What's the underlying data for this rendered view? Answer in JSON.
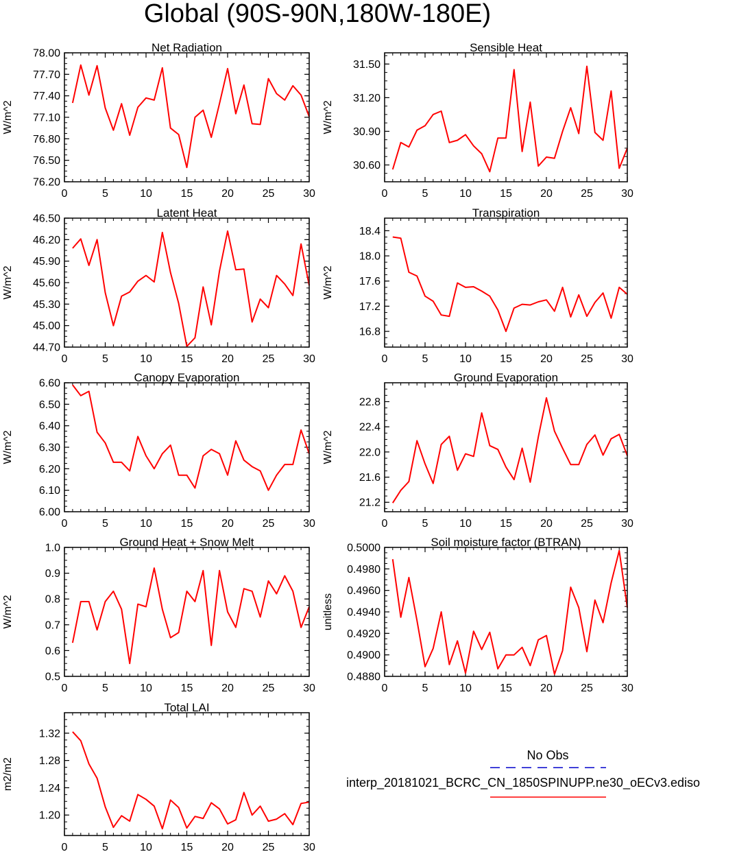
{
  "title": "Global (90S-90N,180W-180E)",
  "series_color": "#ff0000",
  "obs_color": "#0000cc",
  "legend": {
    "obs_label": "No Obs",
    "model_label": "interp_20181021_BCRC_CN_1850SPINUPP.ne30_oECv3.ediso"
  },
  "chart_data": [
    {
      "type": "line",
      "title": "Net Radiation",
      "ylabel": "W/m^2",
      "xlim": [
        0,
        30
      ],
      "xticks": [
        0,
        5,
        10,
        15,
        20,
        25,
        30
      ],
      "ylim": [
        76.2,
        78.0
      ],
      "yticks": [
        "76.20",
        "76.50",
        "76.80",
        "77.10",
        "77.40",
        "77.70",
        "78.00"
      ],
      "x": [
        1,
        2,
        3,
        4,
        5,
        6,
        7,
        8,
        9,
        10,
        11,
        12,
        13,
        14,
        15,
        16,
        17,
        18,
        19,
        20,
        21,
        22,
        23,
        24,
        25,
        26,
        27,
        28,
        29,
        30
      ],
      "values": [
        77.3,
        77.83,
        77.41,
        77.82,
        77.23,
        76.92,
        77.29,
        76.85,
        77.24,
        77.37,
        77.34,
        77.79,
        76.95,
        76.86,
        76.4,
        77.1,
        77.2,
        76.82,
        77.29,
        77.78,
        77.15,
        77.55,
        77.01,
        77.0,
        77.64,
        77.43,
        77.34,
        77.54,
        77.41,
        77.11
      ]
    },
    {
      "type": "line",
      "title": "Sensible Heat",
      "ylabel": "W/m^2",
      "xlim": [
        0,
        30
      ],
      "xticks": [
        0,
        5,
        10,
        15,
        20,
        25,
        30
      ],
      "ylim": [
        30.45,
        31.6
      ],
      "yticks": [
        "30.60",
        "30.90",
        "31.20",
        "31.50"
      ],
      "x": [
        1,
        2,
        3,
        4,
        5,
        6,
        7,
        8,
        9,
        10,
        11,
        12,
        13,
        14,
        15,
        16,
        17,
        18,
        19,
        20,
        21,
        22,
        23,
        24,
        25,
        26,
        27,
        28,
        29,
        30
      ],
      "values": [
        30.56,
        30.8,
        30.76,
        30.91,
        30.95,
        31.05,
        31.08,
        30.8,
        30.82,
        30.87,
        30.77,
        30.7,
        30.54,
        30.84,
        30.84,
        31.45,
        30.72,
        31.16,
        30.59,
        30.67,
        30.66,
        30.9,
        31.11,
        30.88,
        31.48,
        30.89,
        30.82,
        31.26,
        30.57,
        30.75
      ]
    },
    {
      "type": "line",
      "title": "Latent Heat",
      "ylabel": "W/m^2",
      "xlim": [
        0,
        30
      ],
      "xticks": [
        0,
        5,
        10,
        15,
        20,
        25,
        30
      ],
      "ylim": [
        44.7,
        46.5
      ],
      "yticks": [
        "44.70",
        "45.00",
        "45.30",
        "45.60",
        "45.90",
        "46.20",
        "46.50"
      ],
      "x": [
        1,
        2,
        3,
        4,
        5,
        6,
        7,
        8,
        9,
        10,
        11,
        12,
        13,
        14,
        15,
        16,
        17,
        18,
        19,
        20,
        21,
        22,
        23,
        24,
        25,
        26,
        27,
        28,
        29,
        30
      ],
      "values": [
        46.08,
        46.21,
        45.84,
        46.2,
        45.46,
        45.0,
        45.41,
        45.47,
        45.62,
        45.7,
        45.61,
        46.3,
        45.74,
        45.31,
        44.71,
        44.83,
        45.54,
        45.01,
        45.76,
        46.32,
        45.78,
        45.79,
        45.05,
        45.37,
        45.25,
        45.7,
        45.58,
        45.42,
        46.14,
        45.56
      ]
    },
    {
      "type": "line",
      "title": "Transpiration",
      "ylabel": "W/m^2",
      "xlim": [
        0,
        30
      ],
      "xticks": [
        0,
        5,
        10,
        15,
        20,
        25,
        30
      ],
      "ylim": [
        16.55,
        18.6
      ],
      "yticks": [
        "16.8",
        "17.2",
        "17.6",
        "18.0",
        "18.4"
      ],
      "x": [
        1,
        2,
        3,
        4,
        5,
        6,
        7,
        8,
        9,
        10,
        11,
        12,
        13,
        14,
        15,
        16,
        17,
        18,
        19,
        20,
        21,
        22,
        23,
        24,
        25,
        26,
        27,
        28,
        29,
        30
      ],
      "values": [
        18.3,
        18.28,
        17.74,
        17.68,
        17.36,
        17.28,
        17.06,
        17.04,
        17.57,
        17.5,
        17.51,
        17.44,
        17.36,
        17.14,
        16.8,
        17.17,
        17.23,
        17.22,
        17.27,
        17.3,
        17.12,
        17.5,
        17.03,
        17.38,
        17.04,
        17.26,
        17.41,
        17.01,
        17.5,
        17.39
      ]
    },
    {
      "type": "line",
      "title": "Canopy Evaporation",
      "ylabel": "W/m^2",
      "xlim": [
        0,
        30
      ],
      "xticks": [
        0,
        5,
        10,
        15,
        20,
        25,
        30
      ],
      "ylim": [
        6.0,
        6.6
      ],
      "yticks": [
        "6.00",
        "6.10",
        "6.20",
        "6.30",
        "6.40",
        "6.50",
        "6.60"
      ],
      "x": [
        1,
        2,
        3,
        4,
        5,
        6,
        7,
        8,
        9,
        10,
        11,
        12,
        13,
        14,
        15,
        16,
        17,
        18,
        19,
        20,
        21,
        22,
        23,
        24,
        25,
        26,
        27,
        28,
        29,
        30
      ],
      "values": [
        6.59,
        6.54,
        6.56,
        6.37,
        6.32,
        6.23,
        6.23,
        6.19,
        6.35,
        6.26,
        6.2,
        6.27,
        6.31,
        6.17,
        6.17,
        6.11,
        6.26,
        6.29,
        6.27,
        6.17,
        6.33,
        6.24,
        6.21,
        6.19,
        6.1,
        6.17,
        6.22,
        6.22,
        6.38,
        6.27
      ]
    },
    {
      "type": "line",
      "title": "Ground Evaporation",
      "ylabel": "W/m^2",
      "xlim": [
        0,
        30
      ],
      "xticks": [
        0,
        5,
        10,
        15,
        20,
        25,
        30
      ],
      "ylim": [
        21.05,
        23.1
      ],
      "yticks": [
        "21.2",
        "21.6",
        "22.0",
        "22.4",
        "22.8"
      ],
      "x": [
        1,
        2,
        3,
        4,
        5,
        6,
        7,
        8,
        9,
        10,
        11,
        12,
        13,
        14,
        15,
        16,
        17,
        18,
        19,
        20,
        21,
        22,
        23,
        24,
        25,
        26,
        27,
        28,
        29,
        30
      ],
      "values": [
        21.19,
        21.39,
        21.53,
        22.18,
        21.81,
        21.5,
        22.12,
        22.25,
        21.71,
        21.97,
        21.93,
        22.62,
        22.1,
        22.04,
        21.76,
        21.56,
        22.06,
        21.52,
        22.24,
        22.86,
        22.33,
        22.06,
        21.8,
        21.8,
        22.12,
        22.27,
        21.95,
        22.21,
        22.28,
        21.94
      ]
    },
    {
      "type": "line",
      "title": "Ground Heat + Snow Melt",
      "ylabel": "W/m^2",
      "xlim": [
        0,
        30
      ],
      "xticks": [
        0,
        5,
        10,
        15,
        20,
        25,
        30
      ],
      "ylim": [
        0.5,
        1.0
      ],
      "yticks": [
        "0.5",
        "0.6",
        "0.7",
        "0.8",
        "0.9",
        "1.0"
      ],
      "x": [
        1,
        2,
        3,
        4,
        5,
        6,
        7,
        8,
        9,
        10,
        11,
        12,
        13,
        14,
        15,
        16,
        17,
        18,
        19,
        20,
        21,
        22,
        23,
        24,
        25,
        26,
        27,
        28,
        29,
        30
      ],
      "values": [
        0.63,
        0.79,
        0.79,
        0.68,
        0.79,
        0.83,
        0.76,
        0.55,
        0.78,
        0.77,
        0.92,
        0.76,
        0.65,
        0.67,
        0.83,
        0.79,
        0.91,
        0.62,
        0.91,
        0.75,
        0.69,
        0.84,
        0.83,
        0.73,
        0.87,
        0.82,
        0.89,
        0.83,
        0.69,
        0.77
      ]
    },
    {
      "type": "line",
      "title": "Soil moisture factor (BTRAN)",
      "ylabel": "unitless",
      "xlim": [
        0,
        30
      ],
      "xticks": [
        0,
        5,
        10,
        15,
        20,
        25,
        30
      ],
      "ylim": [
        0.488,
        0.5
      ],
      "yticks": [
        "0.4880",
        "0.4900",
        "0.4920",
        "0.4940",
        "0.4960",
        "0.4980",
        "0.5000"
      ],
      "x": [
        1,
        2,
        3,
        4,
        5,
        6,
        7,
        8,
        9,
        10,
        11,
        12,
        13,
        14,
        15,
        16,
        17,
        18,
        19,
        20,
        21,
        22,
        23,
        24,
        25,
        26,
        27,
        28,
        29,
        30
      ],
      "values": [
        0.4989,
        0.4935,
        0.4972,
        0.4932,
        0.4889,
        0.4906,
        0.494,
        0.4891,
        0.4913,
        0.4883,
        0.4922,
        0.4905,
        0.4921,
        0.4887,
        0.49,
        0.49,
        0.4907,
        0.489,
        0.4914,
        0.4918,
        0.4882,
        0.4904,
        0.4963,
        0.4944,
        0.4903,
        0.4951,
        0.493,
        0.4967,
        0.4997,
        0.4944
      ]
    },
    {
      "type": "line",
      "title": "Total LAI",
      "ylabel": "m2/m2",
      "xlim": [
        0,
        30
      ],
      "xticks": [
        0,
        5,
        10,
        15,
        20,
        25,
        30
      ],
      "ylim": [
        1.17,
        1.35
      ],
      "yticks": [
        "1.20",
        "1.24",
        "1.28",
        "1.32"
      ],
      "x": [
        1,
        2,
        3,
        4,
        5,
        6,
        7,
        8,
        9,
        10,
        11,
        12,
        13,
        14,
        15,
        16,
        17,
        18,
        19,
        20,
        21,
        22,
        23,
        24,
        25,
        26,
        27,
        28,
        29,
        30
      ],
      "values": [
        1.322,
        1.309,
        1.275,
        1.254,
        1.212,
        1.182,
        1.199,
        1.191,
        1.23,
        1.223,
        1.213,
        1.18,
        1.222,
        1.211,
        1.181,
        1.198,
        1.195,
        1.218,
        1.209,
        1.187,
        1.193,
        1.233,
        1.2,
        1.213,
        1.191,
        1.194,
        1.202,
        1.186,
        1.217,
        1.219
      ]
    }
  ]
}
